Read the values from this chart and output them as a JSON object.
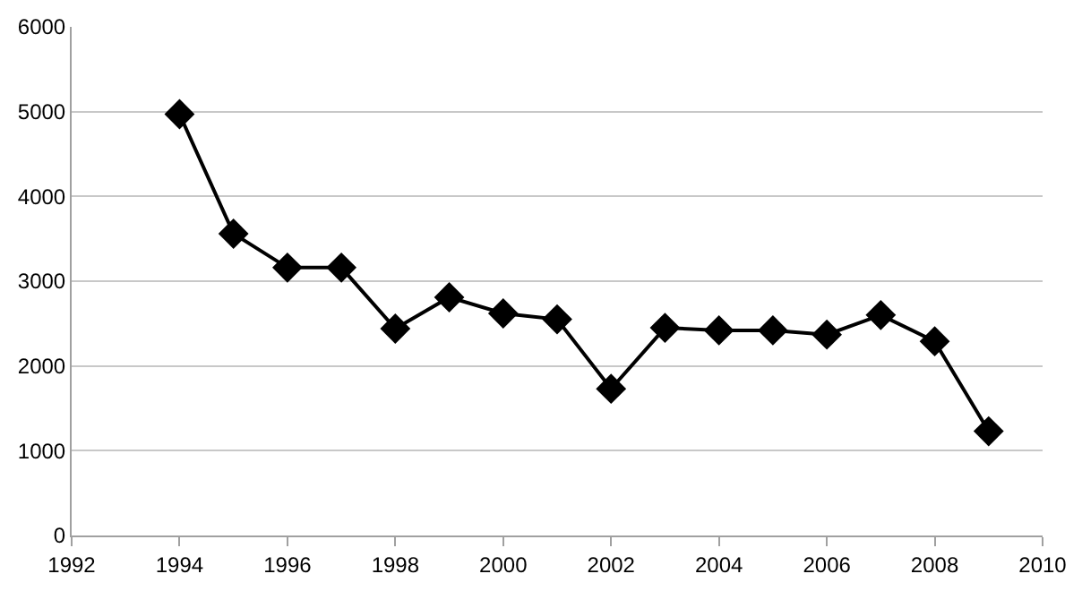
{
  "chart_data": {
    "type": "line",
    "x": [
      1994,
      1995,
      1996,
      1997,
      1998,
      1999,
      2000,
      2001,
      2002,
      2003,
      2004,
      2005,
      2006,
      2007,
      2008,
      2009
    ],
    "series": [
      {
        "color": "#000000",
        "values": [
          4970,
          3560,
          3160,
          3160,
          2440,
          2810,
          2620,
          2550,
          1730,
          2450,
          2420,
          2420,
          2370,
          2600,
          2290,
          1230
        ]
      }
    ],
    "xlim": [
      1992,
      2010
    ],
    "xticks": [
      1992,
      1994,
      1996,
      1998,
      2000,
      2002,
      2004,
      2006,
      2008,
      2010
    ],
    "ylim": [
      0,
      6000
    ],
    "yticks": [
      0,
      1000,
      2000,
      3000,
      4000,
      5000,
      6000
    ],
    "grid": "y",
    "marker": "diamond",
    "line_style": "solid"
  }
}
